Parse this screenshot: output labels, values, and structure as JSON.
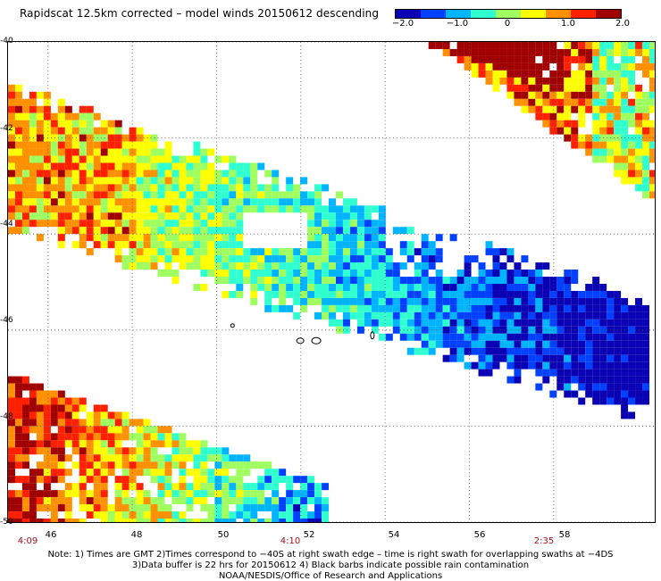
{
  "title": "Rapidscat 12.5km corrected – model winds 20150612 descending",
  "colorbar": {
    "ticks": [
      "−2.0",
      "−1.0",
      "0",
      "1.0",
      "2.0"
    ],
    "tick_values": [
      -2.0,
      -1.0,
      0,
      1.0,
      2.0
    ],
    "range": [
      -2.0,
      2.0
    ],
    "colors": [
      "#0a00b4",
      "#0040ff",
      "#00b4ff",
      "#30ffd0",
      "#a0ff60",
      "#ffff00",
      "#ff9000",
      "#ff2000",
      "#a00000"
    ]
  },
  "map": {
    "lat_labels": [
      "-40",
      "-42",
      "-44",
      "-46",
      "-48",
      "-50"
    ],
    "lat_values": [
      -40,
      -42,
      -44,
      -46,
      -48,
      -50
    ],
    "lon_labels": [
      "46",
      "48",
      "50",
      "52",
      "54",
      "56",
      "58"
    ],
    "lon_values": [
      46,
      48,
      50,
      52,
      54,
      56,
      58
    ],
    "lon_range": [
      45.05,
      60.4
    ],
    "lat_range": [
      -40,
      -50
    ],
    "grid": true
  },
  "times": [
    {
      "label": "4:09",
      "lon": 45.4
    },
    {
      "label": "4:10",
      "lon": 51.5
    },
    {
      "label": "2:35",
      "lon": 56.9
    }
  ],
  "notes": {
    "line1": "Note: 1) Times are GMT 2)Times correspond to −40S at right swath edge – time is right swath for overlapping swaths at −4DS",
    "line2": "3)Data buffer is 22 hrs for 20150612 4) Black barbs indicate possible rain contamination",
    "line3": "NOAA/NESDIS/Office of Research and Applications"
  }
}
